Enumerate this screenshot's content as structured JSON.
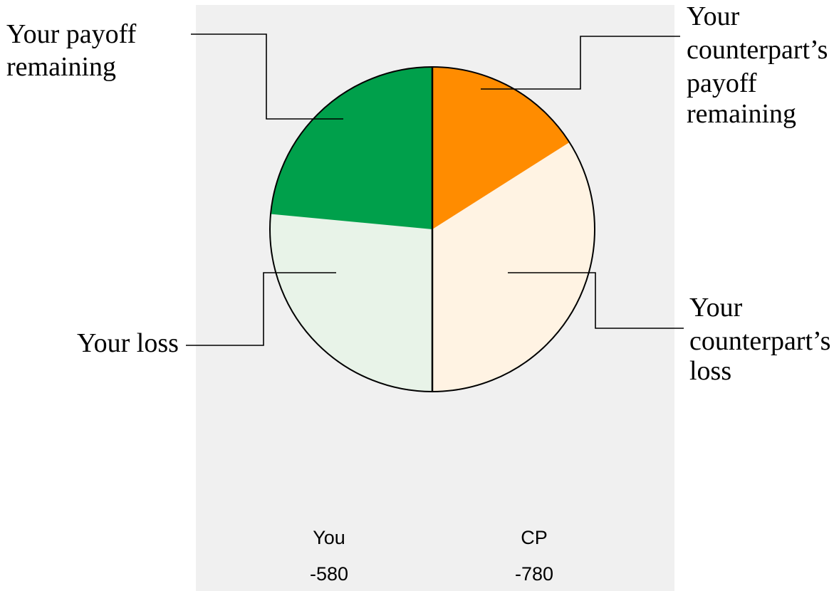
{
  "labels": {
    "your_payoff_remaining": [
      "Your payoff",
      "remaining"
    ],
    "counterpart_payoff_remaining": [
      "Your",
      "counterpart’s",
      "payoff",
      "remaining"
    ],
    "your_loss": [
      "Your loss"
    ],
    "counterpart_loss": [
      "Your",
      "counterpart’s",
      "loss"
    ]
  },
  "players": {
    "you": {
      "label": "You",
      "value": "-580"
    },
    "cp": {
      "label": "CP",
      "value": "-780"
    }
  },
  "pie": {
    "you_remaining_fraction": 0.47,
    "cp_remaining_fraction": 0.32
  },
  "colors": {
    "panel_background": "#f0f0f0",
    "your_payoff_remaining": "#00a04b",
    "your_loss": "#e8f3e8",
    "counterpart_payoff_remaining": "#ff8c00",
    "counterpart_loss": "#fff3e3",
    "outline": "#000000"
  }
}
